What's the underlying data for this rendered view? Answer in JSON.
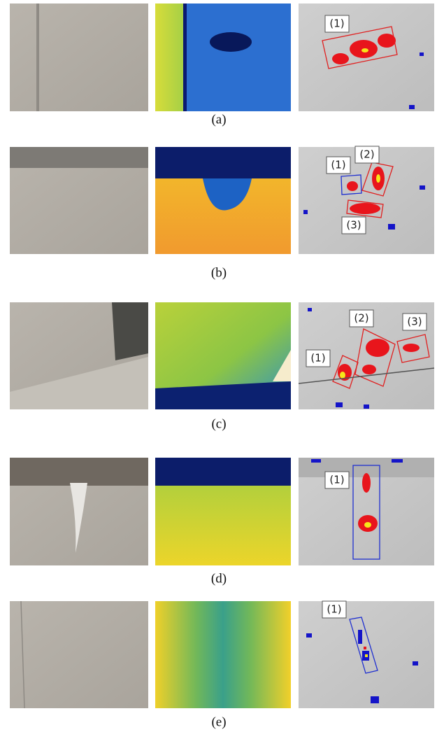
{
  "figure": {
    "rows": [
      {
        "caption": "(a)",
        "labels": [
          "(1)"
        ]
      },
      {
        "caption": "(b)",
        "labels": [
          "(1)",
          "(2)",
          "(3)"
        ]
      },
      {
        "caption": "(c)",
        "labels": [
          "(1)",
          "(2)",
          "(3)"
        ]
      },
      {
        "caption": "(d)",
        "labels": [
          "(1)"
        ]
      },
      {
        "caption": "(e)",
        "labels": [
          "(1)"
        ]
      }
    ]
  }
}
